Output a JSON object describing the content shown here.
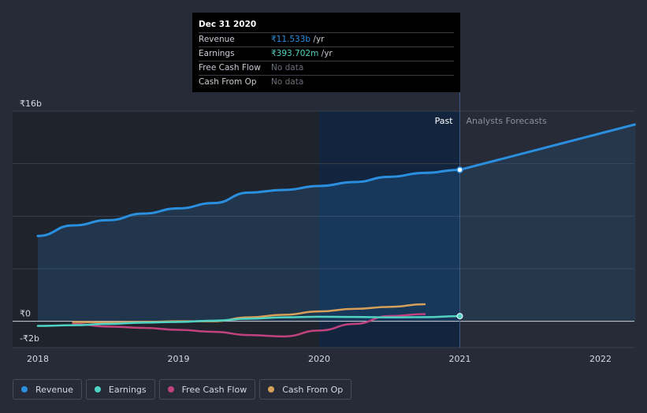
{
  "tooltip": {
    "date": "Dec 31 2020",
    "rows": [
      {
        "label": "Revenue",
        "value": "₹11.533b",
        "unit": " /yr"
      },
      {
        "label": "Earnings",
        "value": "₹393.702m",
        "unit": " /yr"
      },
      {
        "label": "Free Cash Flow",
        "value": "No data",
        "unit": ""
      },
      {
        "label": "Cash From Op",
        "value": "No data",
        "unit": ""
      }
    ]
  },
  "regions": {
    "past_label": "Past",
    "forecast_label": "Analysts Forecasts"
  },
  "colors": {
    "revenue": "#2b8fe0",
    "earnings": "#4fd3c4",
    "free_cash_flow": "#c1437d",
    "cash_from_op": "#d7a05a",
    "background": "#262b37"
  },
  "legend": [
    {
      "key": "revenue",
      "label": "Revenue"
    },
    {
      "key": "earnings",
      "label": "Earnings"
    },
    {
      "key": "free_cash_flow",
      "label": "Free Cash Flow"
    },
    {
      "key": "cash_from_op",
      "label": "Cash From Op"
    }
  ],
  "chart_data": {
    "type": "line",
    "title": "",
    "xlabel": "",
    "ylabel": "",
    "x_ticks": [
      "2018",
      "2019",
      "2020",
      "2021",
      "2022"
    ],
    "y_tick_labels": [
      "₹16b",
      "₹0",
      "-₹2b"
    ],
    "y_ticks": [
      16,
      0,
      -2
    ],
    "ylim": [
      -2,
      16
    ],
    "xlim": [
      2017.9,
      2022.25
    ],
    "past_end": 2021.0,
    "highlight_start": 2020.0,
    "highlight_point": {
      "x": 2021.0,
      "revenue": 11.533,
      "earnings": 0.394
    },
    "series": [
      {
        "name": "Revenue",
        "key": "revenue",
        "points": [
          [
            2018.0,
            6.5
          ],
          [
            2018.25,
            7.3
          ],
          [
            2018.5,
            7.7
          ],
          [
            2018.75,
            8.2
          ],
          [
            2019.0,
            8.6
          ],
          [
            2019.25,
            9.0
          ],
          [
            2019.5,
            9.8
          ],
          [
            2019.75,
            10.0
          ],
          [
            2020.0,
            10.3
          ],
          [
            2020.25,
            10.6
          ],
          [
            2020.5,
            11.0
          ],
          [
            2020.75,
            11.3
          ],
          [
            2021.0,
            11.533
          ]
        ],
        "forecast": [
          [
            2021.0,
            11.533
          ],
          [
            2022.25,
            15.0
          ]
        ]
      },
      {
        "name": "Earnings",
        "key": "earnings",
        "points": [
          [
            2018.0,
            -0.35
          ],
          [
            2018.25,
            -0.3
          ],
          [
            2018.5,
            -0.2
          ],
          [
            2018.75,
            -0.1
          ],
          [
            2019.0,
            -0.05
          ],
          [
            2019.25,
            0.05
          ],
          [
            2019.5,
            0.2
          ],
          [
            2019.75,
            0.3
          ],
          [
            2020.0,
            0.35
          ],
          [
            2020.25,
            0.33
          ],
          [
            2020.5,
            0.3
          ],
          [
            2020.75,
            0.32
          ],
          [
            2021.0,
            0.394
          ]
        ]
      },
      {
        "name": "Free Cash Flow",
        "key": "free_cash_flow",
        "points": [
          [
            2018.25,
            -0.2
          ],
          [
            2018.5,
            -0.4
          ],
          [
            2018.75,
            -0.5
          ],
          [
            2019.0,
            -0.65
          ],
          [
            2019.25,
            -0.8
          ],
          [
            2019.5,
            -1.05
          ],
          [
            2019.75,
            -1.15
          ],
          [
            2020.0,
            -0.7
          ],
          [
            2020.25,
            -0.2
          ],
          [
            2020.5,
            0.4
          ],
          [
            2020.75,
            0.55
          ]
        ]
      },
      {
        "name": "Cash From Op",
        "key": "cash_from_op",
        "points": [
          [
            2018.25,
            -0.05
          ],
          [
            2018.5,
            -0.08
          ],
          [
            2018.75,
            -0.05
          ],
          [
            2019.0,
            0.0
          ],
          [
            2019.25,
            0.0
          ],
          [
            2019.5,
            0.3
          ],
          [
            2019.75,
            0.5
          ],
          [
            2020.0,
            0.75
          ],
          [
            2020.25,
            0.95
          ],
          [
            2020.5,
            1.1
          ],
          [
            2020.75,
            1.3
          ]
        ]
      }
    ]
  }
}
